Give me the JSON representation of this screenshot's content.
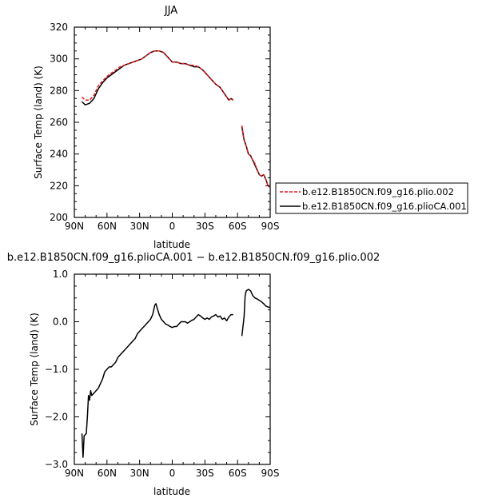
{
  "chart_data": [
    {
      "type": "line",
      "title": "JJA",
      "xlabel": "latitude",
      "ylabel": "Surface Temp (land) (K)",
      "xlim": [
        90,
        -90
      ],
      "ylim": [
        200,
        320
      ],
      "x_ticks": [
        90,
        60,
        30,
        0,
        -30,
        -60,
        -90
      ],
      "x_tick_labels": [
        "90N",
        "60N",
        "30N",
        "0",
        "30S",
        "60S",
        "90S"
      ],
      "y_ticks": [
        200,
        220,
        240,
        260,
        280,
        300,
        320
      ],
      "y_tick_labels": [
        "200",
        "220",
        "240",
        "260",
        "280",
        "300",
        "320"
      ],
      "legend": {
        "position": "right",
        "entries": [
          "b.e12.B1850CN.f09_g16.plio.002",
          "b.e12.B1850CN.f09_g16.plioCA.001"
        ]
      },
      "series": [
        {
          "name": "b.e12.B1850CN.f09_g16.plio.002",
          "color": "#e8141c",
          "dash": "dashed",
          "segments": [
            [
              [
                83,
                276
              ],
              [
                80,
                274
              ],
              [
                76,
                274
              ],
              [
                72,
                277
              ],
              [
                68,
                283
              ],
              [
                64,
                286
              ],
              [
                60,
                289
              ],
              [
                56,
                291
              ],
              [
                52,
                293
              ],
              [
                48,
                295
              ],
              [
                44,
                296
              ],
              [
                40,
                297
              ],
              [
                36,
                298
              ],
              [
                32,
                299
              ],
              [
                28,
                300
              ],
              [
                24,
                302
              ],
              [
                20,
                304
              ],
              [
                16,
                305
              ],
              [
                12,
                305
              ],
              [
                8,
                304
              ],
              [
                4,
                301
              ],
              [
                0,
                298
              ],
              [
                -4,
                298
              ],
              [
                -8,
                297
              ],
              [
                -12,
                297
              ],
              [
                -16,
                296
              ],
              [
                -20,
                296
              ],
              [
                -24,
                295
              ],
              [
                -28,
                293
              ],
              [
                -32,
                290
              ],
              [
                -36,
                287
              ],
              [
                -40,
                284
              ],
              [
                -44,
                282
              ],
              [
                -46,
                280
              ],
              [
                -48,
                278
              ],
              [
                -50,
                276
              ],
              [
                -52,
                274
              ],
              [
                -54,
                275
              ],
              [
                -56,
                274
              ]
            ],
            [
              [
                -64,
                258
              ],
              [
                -66,
                249
              ],
              [
                -68,
                245
              ],
              [
                -70,
                240
              ],
              [
                -72,
                239
              ],
              [
                -74,
                236
              ],
              [
                -76,
                234
              ],
              [
                -78,
                230
              ],
              [
                -80,
                227
              ],
              [
                -82,
                226
              ],
              [
                -84,
                227
              ],
              [
                -86,
                224
              ],
              [
                -88,
                220
              ],
              [
                -90,
                219
              ]
            ]
          ]
        },
        {
          "name": "b.e12.B1850CN.f09_g16.plioCA.001",
          "color": "#000000",
          "dash": "solid",
          "segments": [
            [
              [
                83,
                273
              ],
              [
                80,
                271
              ],
              [
                76,
                272
              ],
              [
                72,
                275
              ],
              [
                68,
                281
              ],
              [
                64,
                285
              ],
              [
                60,
                288
              ],
              [
                56,
                290
              ],
              [
                52,
                292
              ],
              [
                48,
                294
              ],
              [
                44,
                296
              ],
              [
                40,
                297
              ],
              [
                36,
                298
              ],
              [
                32,
                299
              ],
              [
                28,
                300
              ],
              [
                24,
                302
              ],
              [
                20,
                304
              ],
              [
                16,
                305
              ],
              [
                12,
                305
              ],
              [
                8,
                304
              ],
              [
                4,
                301
              ],
              [
                0,
                298
              ],
              [
                -4,
                298
              ],
              [
                -8,
                297
              ],
              [
                -12,
                297
              ],
              [
                -16,
                296
              ],
              [
                -20,
                295
              ],
              [
                -24,
                295
              ],
              [
                -28,
                293
              ],
              [
                -32,
                290
              ],
              [
                -36,
                287
              ],
              [
                -40,
                284
              ],
              [
                -44,
                282
              ],
              [
                -46,
                280
              ],
              [
                -48,
                278
              ],
              [
                -50,
                276
              ],
              [
                -52,
                274
              ],
              [
                -54,
                275
              ],
              [
                -56,
                274
              ]
            ],
            [
              [
                -64,
                257
              ],
              [
                -66,
                249
              ],
              [
                -68,
                245
              ],
              [
                -70,
                240
              ],
              [
                -72,
                239
              ],
              [
                -74,
                236
              ],
              [
                -76,
                233
              ],
              [
                -78,
                230
              ],
              [
                -80,
                227
              ],
              [
                -82,
                226
              ],
              [
                -84,
                227
              ],
              [
                -86,
                224
              ],
              [
                -88,
                220
              ],
              [
                -90,
                219
              ]
            ]
          ]
        }
      ]
    },
    {
      "type": "line",
      "title": "b.e12.B1850CN.f09_g16.plioCA.001 − b.e12.B1850CN.f09_g16.plio.002",
      "xlabel": "latitude",
      "ylabel": "Surface Temp (land) (K)",
      "xlim": [
        90,
        -90
      ],
      "ylim": [
        -3.0,
        1.0
      ],
      "x_ticks": [
        90,
        60,
        30,
        0,
        -30,
        -60,
        -90
      ],
      "x_tick_labels": [
        "90N",
        "60N",
        "30N",
        "0",
        "30S",
        "60S",
        "90S"
      ],
      "y_ticks": [
        -3.0,
        -2.0,
        -1.0,
        0.0,
        1.0
      ],
      "y_tick_labels": [
        "−3.0",
        "−2.0",
        "−1.0",
        "0.0",
        "1.0"
      ],
      "series": [
        {
          "color": "#000000",
          "dash": "solid",
          "segments": [
            [
              [
                83,
                -2.35
              ],
              [
                82,
                -2.85
              ],
              [
                81,
                -2.4
              ],
              [
                79,
                -2.35
              ],
              [
                78,
                -2.0
              ],
              [
                77,
                -1.55
              ],
              [
                76,
                -1.65
              ],
              [
                75,
                -1.45
              ],
              [
                74,
                -1.55
              ],
              [
                72,
                -1.5
              ],
              [
                70,
                -1.45
              ],
              [
                68,
                -1.4
              ],
              [
                66,
                -1.3
              ],
              [
                64,
                -1.2
              ],
              [
                62,
                -1.05
              ],
              [
                60,
                -1.0
              ],
              [
                58,
                -0.95
              ],
              [
                56,
                -0.95
              ],
              [
                54,
                -0.9
              ],
              [
                52,
                -0.85
              ],
              [
                50,
                -0.75
              ],
              [
                48,
                -0.7
              ],
              [
                46,
                -0.65
              ],
              [
                44,
                -0.6
              ],
              [
                42,
                -0.55
              ],
              [
                40,
                -0.5
              ],
              [
                38,
                -0.45
              ],
              [
                36,
                -0.4
              ],
              [
                34,
                -0.35
              ],
              [
                32,
                -0.25
              ],
              [
                30,
                -0.2
              ],
              [
                28,
                -0.15
              ],
              [
                26,
                -0.1
              ],
              [
                24,
                -0.05
              ],
              [
                22,
                0.0
              ],
              [
                20,
                0.05
              ],
              [
                18,
                0.15
              ],
              [
                16,
                0.35
              ],
              [
                15,
                0.38
              ],
              [
                14,
                0.3
              ],
              [
                12,
                0.15
              ],
              [
                10,
                0.05
              ],
              [
                8,
                0.0
              ],
              [
                6,
                -0.05
              ],
              [
                4,
                -0.07
              ],
              [
                2,
                -0.1
              ],
              [
                0,
                -0.12
              ],
              [
                -2,
                -0.1
              ],
              [
                -4,
                -0.1
              ],
              [
                -6,
                -0.05
              ],
              [
                -8,
                0.0
              ],
              [
                -10,
                0.0
              ],
              [
                -12,
                0.0
              ],
              [
                -14,
                -0.03
              ],
              [
                -16,
                0.0
              ],
              [
                -18,
                0.03
              ],
              [
                -20,
                0.05
              ],
              [
                -22,
                0.1
              ],
              [
                -24,
                0.15
              ],
              [
                -26,
                0.12
              ],
              [
                -28,
                0.08
              ],
              [
                -30,
                0.05
              ],
              [
                -32,
                0.08
              ],
              [
                -34,
                0.05
              ],
              [
                -36,
                0.1
              ],
              [
                -38,
                0.12
              ],
              [
                -40,
                0.15
              ],
              [
                -42,
                0.1
              ],
              [
                -44,
                0.12
              ],
              [
                -46,
                0.05
              ],
              [
                -48,
                0.08
              ],
              [
                -50,
                0.02
              ],
              [
                -52,
                0.1
              ],
              [
                -54,
                0.15
              ],
              [
                -56,
                0.15
              ]
            ],
            [
              [
                -64,
                -0.3
              ],
              [
                -66,
                0.1
              ],
              [
                -67,
                0.55
              ],
              [
                -68,
                0.65
              ],
              [
                -70,
                0.68
              ],
              [
                -72,
                0.65
              ],
              [
                -74,
                0.55
              ],
              [
                -76,
                0.5
              ],
              [
                -78,
                0.48
              ],
              [
                -80,
                0.45
              ],
              [
                -82,
                0.42
              ],
              [
                -84,
                0.38
              ],
              [
                -86,
                0.33
              ],
              [
                -88,
                0.31
              ],
              [
                -90,
                0.3
              ]
            ]
          ]
        }
      ]
    }
  ]
}
